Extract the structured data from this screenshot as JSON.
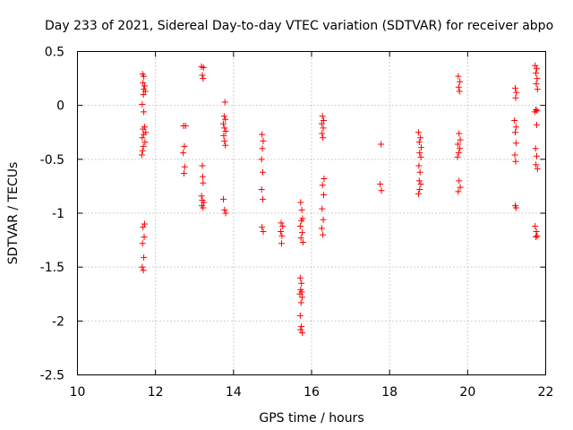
{
  "chart_data": {
    "type": "scatter",
    "title": "Day 233 of 2021, Sidereal Day-to-day VTEC variation (SDTVAR) for receiver abpo",
    "xlabel": "GPS time / hours",
    "ylabel": "SDTVAR / TECUs",
    "xlim": [
      10,
      22
    ],
    "ylim": [
      -2.5,
      0.5
    ],
    "xticks": [
      "10",
      "12",
      "14",
      "16",
      "18",
      "20",
      "22"
    ],
    "yticks": [
      "0.5",
      "0",
      "-0.5",
      "-1",
      "-1.5",
      "-2",
      "-2.5"
    ],
    "xtick_values": [
      10,
      12,
      14,
      16,
      18,
      20,
      22
    ],
    "ytick_values": [
      0.5,
      0,
      -0.5,
      -1,
      -1.5,
      -2,
      -2.5
    ],
    "grid": true,
    "marker": "+",
    "color": "#ff0000",
    "series": [
      {
        "name": "SDTVAR",
        "points": [
          [
            11.67,
            0.29
          ],
          [
            11.7,
            0.27
          ],
          [
            11.68,
            0.21
          ],
          [
            11.72,
            0.18
          ],
          [
            11.7,
            0.15
          ],
          [
            11.74,
            0.13
          ],
          [
            11.69,
            0.1
          ],
          [
            11.66,
            0.01
          ],
          [
            11.7,
            -0.06
          ],
          [
            11.72,
            -0.2
          ],
          [
            11.68,
            -0.22
          ],
          [
            11.75,
            -0.25
          ],
          [
            11.7,
            -0.27
          ],
          [
            11.66,
            -0.3
          ],
          [
            11.73,
            -0.34
          ],
          [
            11.69,
            -0.38
          ],
          [
            11.67,
            -0.42
          ],
          [
            11.65,
            -0.46
          ],
          [
            11.72,
            -1.1
          ],
          [
            11.68,
            -1.13
          ],
          [
            11.71,
            -1.22
          ],
          [
            11.67,
            -1.28
          ],
          [
            11.7,
            -1.41
          ],
          [
            11.66,
            -1.5
          ],
          [
            11.69,
            -1.53
          ],
          [
            12.72,
            -0.19
          ],
          [
            12.77,
            -0.19
          ],
          [
            12.74,
            -0.38
          ],
          [
            12.71,
            -0.44
          ],
          [
            12.75,
            -0.57
          ],
          [
            12.73,
            -0.63
          ],
          [
            13.18,
            0.36
          ],
          [
            13.23,
            0.35
          ],
          [
            13.2,
            0.28
          ],
          [
            13.22,
            0.25
          ],
          [
            13.2,
            -0.56
          ],
          [
            13.21,
            -0.66
          ],
          [
            13.22,
            -0.72
          ],
          [
            13.18,
            -0.84
          ],
          [
            13.2,
            -0.88
          ],
          [
            13.24,
            -0.9
          ],
          [
            13.19,
            -0.93
          ],
          [
            13.22,
            -0.95
          ],
          [
            13.78,
            0.03
          ],
          [
            13.76,
            -0.1
          ],
          [
            13.79,
            -0.13
          ],
          [
            13.74,
            -0.17
          ],
          [
            13.77,
            -0.21
          ],
          [
            13.8,
            -0.24
          ],
          [
            13.75,
            -0.28
          ],
          [
            13.77,
            -0.33
          ],
          [
            13.79,
            -0.37
          ],
          [
            13.74,
            -0.87
          ],
          [
            13.77,
            -0.97
          ],
          [
            13.8,
            -1.0
          ],
          [
            14.73,
            -0.27
          ],
          [
            14.76,
            -0.33
          ],
          [
            14.74,
            -0.4
          ],
          [
            14.72,
            -0.5
          ],
          [
            14.75,
            -0.62
          ],
          [
            14.72,
            -0.78
          ],
          [
            14.75,
            -0.87
          ],
          [
            14.73,
            -1.13
          ],
          [
            14.76,
            -1.17
          ],
          [
            15.22,
            -1.09
          ],
          [
            15.26,
            -1.12
          ],
          [
            15.21,
            -1.17
          ],
          [
            15.24,
            -1.21
          ],
          [
            15.23,
            -1.28
          ],
          [
            15.72,
            -0.9
          ],
          [
            15.75,
            -0.97
          ],
          [
            15.77,
            -1.05
          ],
          [
            15.74,
            -1.07
          ],
          [
            15.71,
            -1.12
          ],
          [
            15.76,
            -1.18
          ],
          [
            15.73,
            -1.23
          ],
          [
            15.78,
            -1.27
          ],
          [
            15.71,
            -1.6
          ],
          [
            15.74,
            -1.65
          ],
          [
            15.72,
            -1.71
          ],
          [
            15.75,
            -1.73
          ],
          [
            15.7,
            -1.75
          ],
          [
            15.76,
            -1.78
          ],
          [
            15.73,
            -1.83
          ],
          [
            15.71,
            -1.95
          ],
          [
            15.74,
            -2.05
          ],
          [
            15.72,
            -2.08
          ],
          [
            15.76,
            -2.11
          ],
          [
            16.28,
            -0.1
          ],
          [
            16.31,
            -0.14
          ],
          [
            16.26,
            -0.17
          ],
          [
            16.3,
            -0.21
          ],
          [
            16.27,
            -0.26
          ],
          [
            16.29,
            -0.3
          ],
          [
            16.32,
            -0.68
          ],
          [
            16.28,
            -0.74
          ],
          [
            16.31,
            -0.83
          ],
          [
            16.27,
            -0.96
          ],
          [
            16.3,
            -1.06
          ],
          [
            16.26,
            -1.14
          ],
          [
            16.29,
            -1.2
          ],
          [
            17.78,
            -0.36
          ],
          [
            17.76,
            -0.73
          ],
          [
            17.79,
            -0.79
          ],
          [
            18.74,
            -0.25
          ],
          [
            18.79,
            -0.3
          ],
          [
            18.76,
            -0.34
          ],
          [
            18.81,
            -0.39
          ],
          [
            18.77,
            -0.44
          ],
          [
            18.8,
            -0.48
          ],
          [
            18.75,
            -0.56
          ],
          [
            18.78,
            -0.62
          ],
          [
            18.76,
            -0.7
          ],
          [
            18.8,
            -0.73
          ],
          [
            18.77,
            -0.78
          ],
          [
            18.74,
            -0.82
          ],
          [
            19.76,
            0.27
          ],
          [
            19.8,
            0.22
          ],
          [
            19.77,
            0.17
          ],
          [
            19.79,
            0.13
          ],
          [
            19.78,
            -0.26
          ],
          [
            19.81,
            -0.32
          ],
          [
            19.75,
            -0.36
          ],
          [
            19.8,
            -0.4
          ],
          [
            19.77,
            -0.44
          ],
          [
            19.74,
            -0.48
          ],
          [
            19.78,
            -0.7
          ],
          [
            19.81,
            -0.76
          ],
          [
            19.76,
            -0.8
          ],
          [
            21.22,
            0.16
          ],
          [
            21.25,
            0.12
          ],
          [
            21.23,
            0.07
          ],
          [
            21.2,
            -0.14
          ],
          [
            21.24,
            -0.2
          ],
          [
            21.22,
            -0.25
          ],
          [
            21.24,
            -0.35
          ],
          [
            21.21,
            -0.46
          ],
          [
            21.23,
            -0.52
          ],
          [
            21.22,
            -0.93
          ],
          [
            21.24,
            -0.95
          ],
          [
            21.73,
            0.37
          ],
          [
            21.77,
            0.34
          ],
          [
            21.75,
            0.3
          ],
          [
            21.78,
            0.25
          ],
          [
            21.76,
            0.2
          ],
          [
            21.79,
            0.15
          ],
          [
            21.72,
            -0.06
          ],
          [
            21.75,
            -0.04
          ],
          [
            21.78,
            -0.05
          ],
          [
            21.77,
            -0.18
          ],
          [
            21.74,
            -0.4
          ],
          [
            21.77,
            -0.47
          ],
          [
            21.75,
            -0.55
          ],
          [
            21.79,
            -0.59
          ],
          [
            21.73,
            -1.12
          ],
          [
            21.76,
            -1.17
          ],
          [
            21.78,
            -1.21
          ],
          [
            21.75,
            -1.22
          ]
        ]
      }
    ]
  }
}
